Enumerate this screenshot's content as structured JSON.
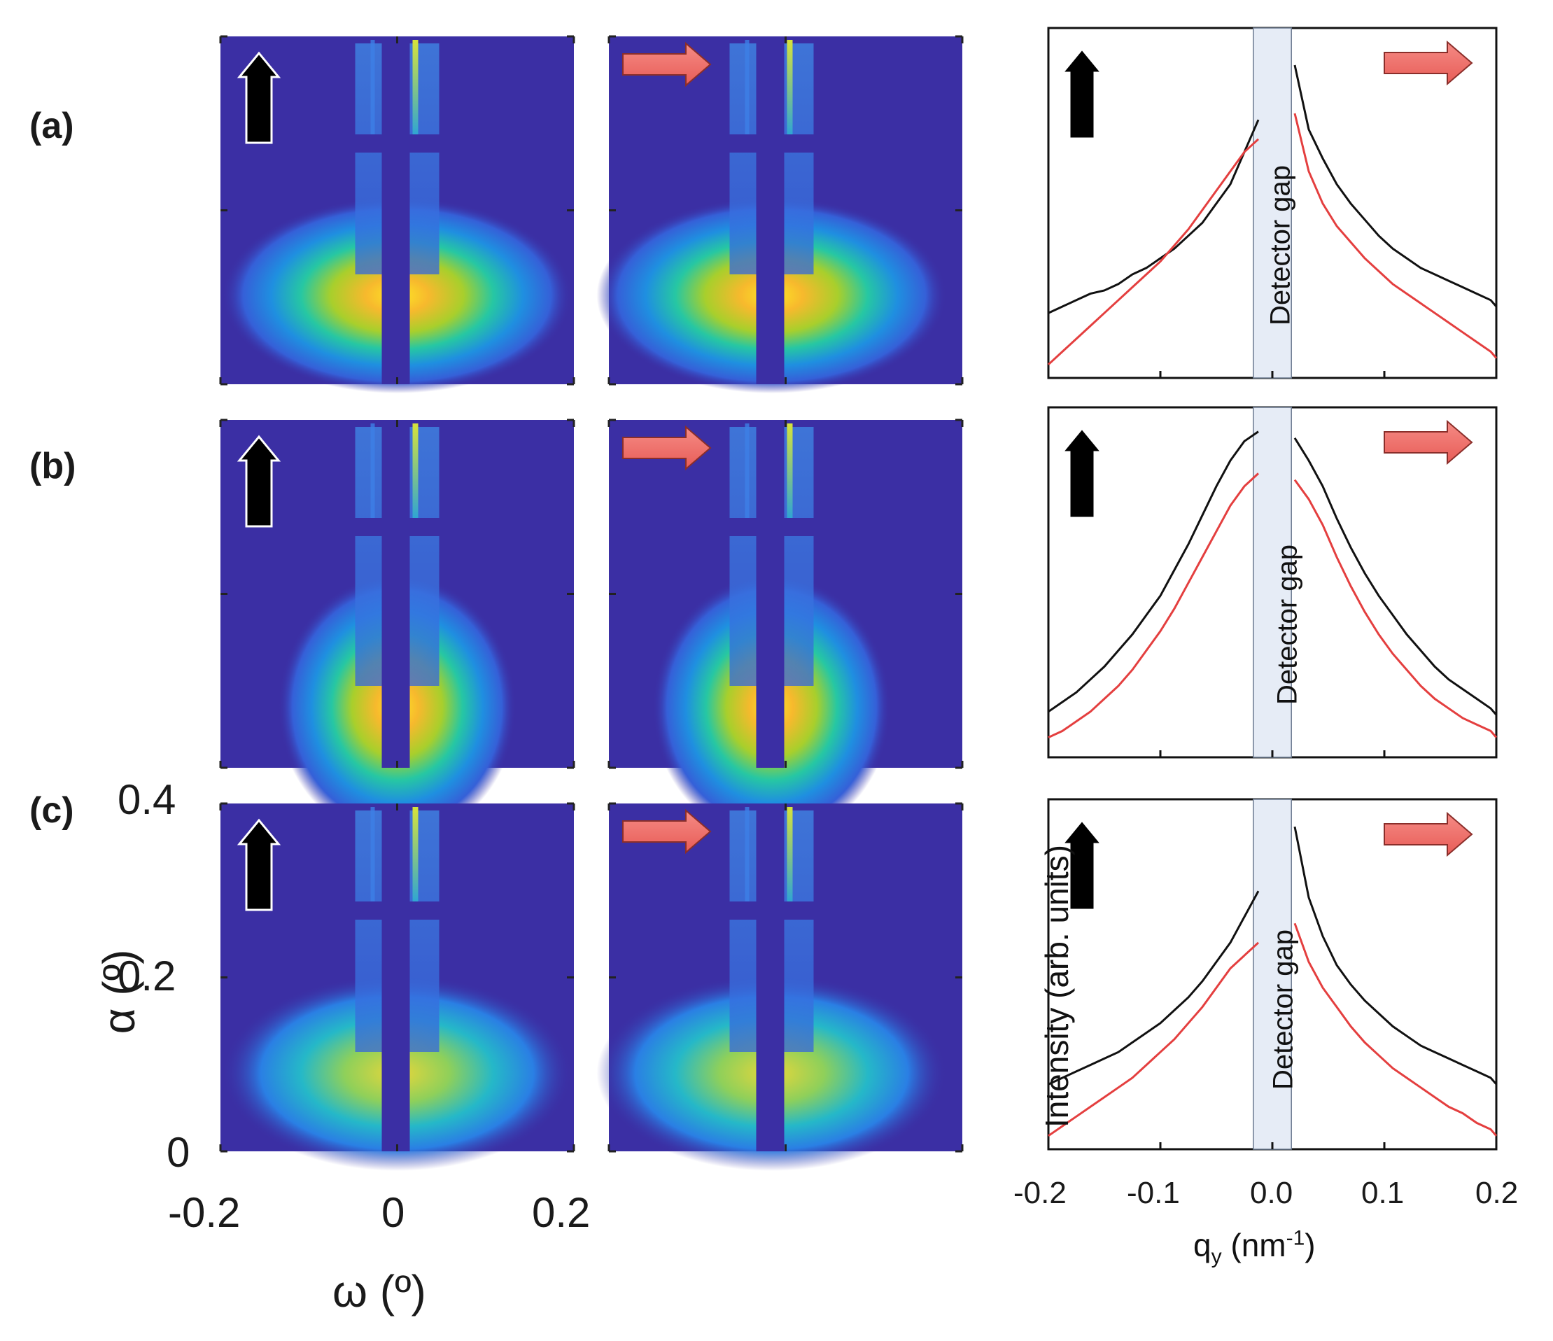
{
  "rows": [
    {
      "label": "(a)"
    },
    {
      "label": "(b)"
    },
    {
      "label": "(c)"
    }
  ],
  "colors": {
    "background_map": "#3b2fa4",
    "black_trace": "#111111",
    "red_trace": "#e43f3f",
    "arrow_red": "#f0706c",
    "arrow_black": "#000000",
    "gap_fill": "#e6ecf6"
  },
  "icons": [
    "black-up-arrow-icon",
    "red-right-arrow-icon"
  ],
  "chart_data": [
    {
      "type": "heatmap",
      "panels": "GISAXS detector maps, rows (a)-(c), two orientations each",
      "x": {
        "label": "ω (º)",
        "ticks": [
          "-0.2",
          "0",
          "0.2"
        ],
        "range": [
          -0.2,
          0.2
        ]
      },
      "y": {
        "label": "α (º)",
        "ticks": [
          "0",
          "0.2",
          "0.4"
        ],
        "range": [
          0,
          0.4
        ]
      },
      "colormap": "parula"
    },
    {
      "type": "line",
      "x": {
        "label": "qy (nm-1)",
        "label_main": "q",
        "label_sub": "y",
        "label_unit_open": " (nm",
        "label_sup": "-1",
        "label_close": ")",
        "ticks": [
          "-0.2",
          "-0.1",
          "0.0",
          "0.1",
          "0.2"
        ],
        "range": [
          -0.2,
          0.2
        ]
      },
      "y": {
        "label": "Intensity (arb. units)"
      },
      "annotation": "Detector gap",
      "gap_range": [
        -0.017,
        0.017
      ],
      "series": [
        {
          "color": "#111111",
          "x_step": 0.0125,
          "rows": [
            {
              "values_left": [
                0.18,
                0.2,
                0.22,
                0.24,
                0.25,
                0.27,
                0.3,
                0.32,
                0.35,
                0.38,
                0.42,
                0.46,
                0.52,
                0.58,
                0.68,
                0.78
              ],
              "values_right": [
                0.95,
                0.75,
                0.66,
                0.58,
                0.52,
                0.47,
                0.42,
                0.38,
                0.35,
                0.32,
                0.3,
                0.28,
                0.26,
                0.24,
                0.22,
                0.2
              ]
            },
            {
              "values_left": [
                0.12,
                0.15,
                0.18,
                0.22,
                0.26,
                0.31,
                0.36,
                0.42,
                0.48,
                0.56,
                0.64,
                0.73,
                0.82,
                0.9,
                0.96,
                0.99
              ],
              "values_right": [
                0.97,
                0.9,
                0.82,
                0.72,
                0.63,
                0.55,
                0.48,
                0.42,
                0.36,
                0.31,
                0.26,
                0.22,
                0.19,
                0.16,
                0.13,
                0.11
              ]
            },
            {
              "values_left": [
                0.18,
                0.2,
                0.22,
                0.24,
                0.26,
                0.28,
                0.31,
                0.34,
                0.37,
                0.41,
                0.45,
                0.5,
                0.56,
                0.62,
                0.7,
                0.78
              ],
              "values_right": [
                0.98,
                0.76,
                0.64,
                0.55,
                0.49,
                0.44,
                0.4,
                0.36,
                0.33,
                0.3,
                0.28,
                0.26,
                0.24,
                0.22,
                0.2,
                0.18
              ]
            }
          ]
        },
        {
          "color": "#e43f3f",
          "x_step": 0.0125,
          "rows": [
            {
              "values_left": [
                0.02,
                0.06,
                0.1,
                0.14,
                0.18,
                0.22,
                0.26,
                0.3,
                0.34,
                0.39,
                0.44,
                0.5,
                0.56,
                0.62,
                0.68,
                0.72
              ],
              "values_right": [
                0.8,
                0.62,
                0.52,
                0.45,
                0.4,
                0.35,
                0.31,
                0.27,
                0.24,
                0.21,
                0.18,
                0.15,
                0.12,
                0.09,
                0.06,
                0.04
              ]
            },
            {
              "values_left": [
                0.04,
                0.06,
                0.09,
                0.12,
                0.16,
                0.2,
                0.25,
                0.31,
                0.37,
                0.44,
                0.52,
                0.6,
                0.68,
                0.76,
                0.82,
                0.86
              ],
              "values_right": [
                0.84,
                0.78,
                0.7,
                0.6,
                0.51,
                0.43,
                0.36,
                0.3,
                0.25,
                0.2,
                0.16,
                0.13,
                0.1,
                0.08,
                0.06,
                0.04
              ]
            },
            {
              "values_left": [
                0.02,
                0.05,
                0.08,
                0.11,
                0.14,
                0.17,
                0.2,
                0.24,
                0.28,
                0.32,
                0.37,
                0.42,
                0.48,
                0.54,
                0.58,
                0.62
              ],
              "values_right": [
                0.68,
                0.56,
                0.48,
                0.42,
                0.36,
                0.31,
                0.27,
                0.23,
                0.2,
                0.17,
                0.14,
                0.11,
                0.09,
                0.06,
                0.04,
                0.02
              ]
            }
          ]
        }
      ]
    }
  ]
}
